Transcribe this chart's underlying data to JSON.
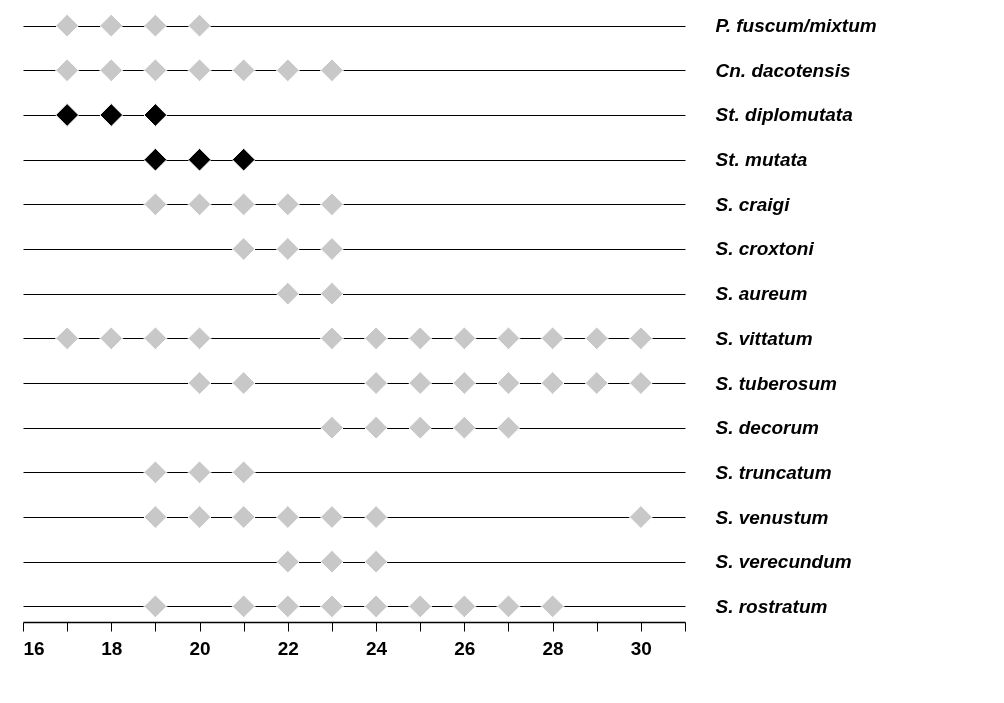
{
  "chart_data": {
    "type": "scatter",
    "orientation": "horizontal",
    "marker": "diamond",
    "grid": "y",
    "legend": false,
    "categories": [
      "P. fuscum/mixtum",
      "Cn. dacotensis",
      "St. diplomutata",
      "St. mutata",
      "S. craigi",
      "S. croxtoni",
      "S. aureum",
      "S. vittatum",
      "S. tuberosum",
      "S. decorum",
      "S. truncatum",
      "S. venustum",
      "S. verecundum",
      "S. rostratum"
    ],
    "xlim": [
      16,
      31
    ],
    "xticks": [
      16,
      {
        "value": 17,
        "label": null
      },
      18,
      {
        "value": 19,
        "label": null
      },
      20,
      {
        "value": 21,
        "label": null
      },
      22,
      {
        "value": 23,
        "label": null
      },
      24,
      {
        "value": 25,
        "label": null
      },
      26,
      {
        "value": 27,
        "label": null
      },
      28,
      {
        "value": 29,
        "label": null
      },
      30,
      {
        "value": 31,
        "label": null
      }
    ],
    "series": [
      {
        "color": "#c8c8c8",
        "x": [
          "P. fuscum/mixtum",
          "P. fuscum/mixtum",
          "P. fuscum/mixtum",
          "P. fuscum/mixtum",
          "Cn. dacotensis",
          "Cn. dacotensis",
          "Cn. dacotensis",
          "Cn. dacotensis",
          "Cn. dacotensis",
          "Cn. dacotensis",
          "Cn. dacotensis",
          "S. craigi",
          "S. craigi",
          "S. craigi",
          "S. craigi",
          "S. craigi",
          "S. croxtoni",
          "S. croxtoni",
          "S. croxtoni",
          "S. aureum",
          "S. aureum",
          "S. vittatum",
          "S. vittatum",
          "S. vittatum",
          "S. vittatum",
          "S. vittatum",
          "S. vittatum",
          "S. vittatum",
          "S. vittatum",
          "S. vittatum",
          "S. vittatum",
          "S. vittatum",
          "S. vittatum",
          "S. tuberosum",
          "S. tuberosum",
          "S. tuberosum",
          "S. tuberosum",
          "S. tuberosum",
          "S. tuberosum",
          "S. tuberosum",
          "S. tuberosum",
          "S. tuberosum",
          "S. decorum",
          "S. decorum",
          "S. decorum",
          "S. decorum",
          "S. decorum",
          "S. truncatum",
          "S. truncatum",
          "S. truncatum",
          "S. venustum",
          "S. venustum",
          "S. venustum",
          "S. venustum",
          "S. venustum",
          "S. venustum",
          "S. venustum",
          "S. verecundum",
          "S. verecundum",
          "S. verecundum",
          "S. rostratum",
          "S. rostratum",
          "S. rostratum",
          "S. rostratum",
          "S. rostratum",
          "S. rostratum",
          "S. rostratum",
          "S. rostratum",
          "S. rostratum"
        ],
        "values": [
          17,
          18,
          19,
          20,
          17,
          18,
          19,
          20,
          21,
          22,
          23,
          19,
          20,
          21,
          22,
          23,
          21,
          22,
          23,
          22,
          23,
          17,
          18,
          19,
          20,
          23,
          24,
          25,
          26,
          27,
          28,
          29,
          30,
          20,
          21,
          24,
          25,
          26,
          27,
          28,
          29,
          30,
          23,
          24,
          25,
          26,
          27,
          19,
          20,
          21,
          19,
          20,
          21,
          22,
          23,
          24,
          30,
          22,
          23,
          24,
          19,
          21,
          22,
          23,
          24,
          25,
          26,
          27,
          28
        ]
      },
      {
        "color": "#000000",
        "x": [
          "St. diplomutata",
          "St. diplomutata",
          "St. diplomutata",
          "St. mutata",
          "St. mutata",
          "St. mutata"
        ],
        "values": [
          17,
          18,
          19,
          19,
          20,
          21
        ]
      }
    ]
  }
}
